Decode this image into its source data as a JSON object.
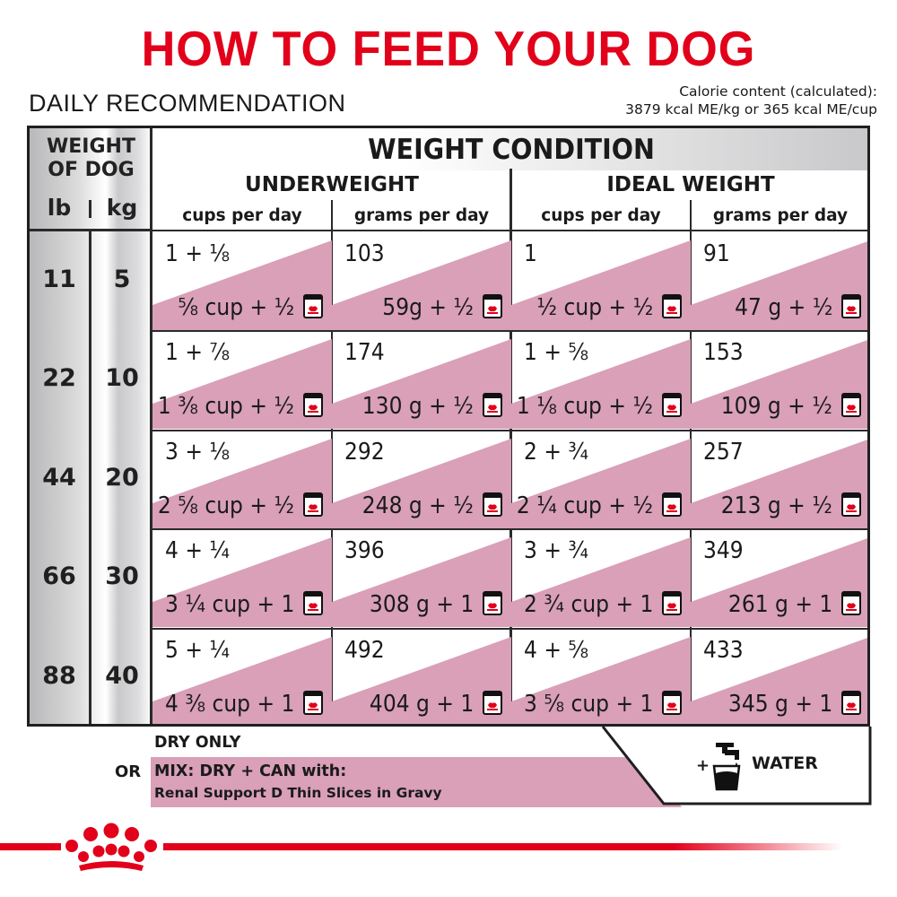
{
  "title": "HOW TO FEED YOUR DOG",
  "subtitle": "DAILY RECOMMENDATION",
  "calorie_line1": "Calorie content (calculated):",
  "calorie_line2": "3879 kcal ME/kg or 365 kcal ME/cup",
  "header": {
    "weight_of_dog_1": "WEIGHT",
    "weight_of_dog_2": "OF DOG",
    "lb": "lb",
    "kg": "kg",
    "weight_condition": "WEIGHT CONDITION",
    "underweight": "UNDERWEIGHT",
    "ideal_weight": "IDEAL WEIGHT",
    "cups_per_day": "cups per day",
    "grams_per_day": "grams per day"
  },
  "rows": [
    {
      "lb": "11",
      "kg": "5",
      "cells": [
        {
          "dry": "1 + ⅛",
          "mix": "⅝ cup + ½"
        },
        {
          "dry": "103",
          "mix": "59g + ½"
        },
        {
          "dry": "1",
          "mix": "½ cup + ½"
        },
        {
          "dry": "91",
          "mix": "47 g + ½"
        }
      ]
    },
    {
      "lb": "22",
      "kg": "10",
      "cells": [
        {
          "dry": "1 + ⅞",
          "mix": "1 ⅜ cup + ½"
        },
        {
          "dry": "174",
          "mix": "130 g + ½"
        },
        {
          "dry": "1 + ⅝",
          "mix": "1 ⅛ cup + ½"
        },
        {
          "dry": "153",
          "mix": "109 g + ½"
        }
      ]
    },
    {
      "lb": "44",
      "kg": "20",
      "cells": [
        {
          "dry": "3 + ⅛",
          "mix": "2 ⅝ cup + ½"
        },
        {
          "dry": "292",
          "mix": "248 g + ½"
        },
        {
          "dry": "2 + ¾",
          "mix": "2 ¼ cup + ½"
        },
        {
          "dry": "257",
          "mix": "213 g + ½"
        }
      ]
    },
    {
      "lb": "66",
      "kg": "30",
      "cells": [
        {
          "dry": "4 + ¼",
          "mix": "3 ¼ cup + 1"
        },
        {
          "dry": "396",
          "mix": "308 g + 1"
        },
        {
          "dry": "3 + ¾",
          "mix": "2  ¾ cup + 1"
        },
        {
          "dry": "349",
          "mix": "261 g + 1"
        }
      ]
    },
    {
      "lb": "88",
      "kg": "40",
      "cells": [
        {
          "dry": "5 + ¼",
          "mix": "4 ⅜ cup + 1"
        },
        {
          "dry": "492",
          "mix": "404 g + 1"
        },
        {
          "dry": "4 + ⅝",
          "mix": "3 ⅝ cup + 1"
        },
        {
          "dry": "433",
          "mix": "345 g + 1"
        }
      ]
    }
  ],
  "legend": {
    "dry_only": "DRY ONLY",
    "or": "OR",
    "mix": "MIX: DRY + CAN with:",
    "renal": "Renal Support D Thin Slices in Gravy",
    "plus": "+",
    "water": "WATER"
  },
  "colors": {
    "brand_red": "#e2001a",
    "pink": "#d9a0b8",
    "gray": "#c9c9cb"
  },
  "icons": [
    "can-icon",
    "water-tap-icon",
    "royal-canin-crown-logo"
  ]
}
